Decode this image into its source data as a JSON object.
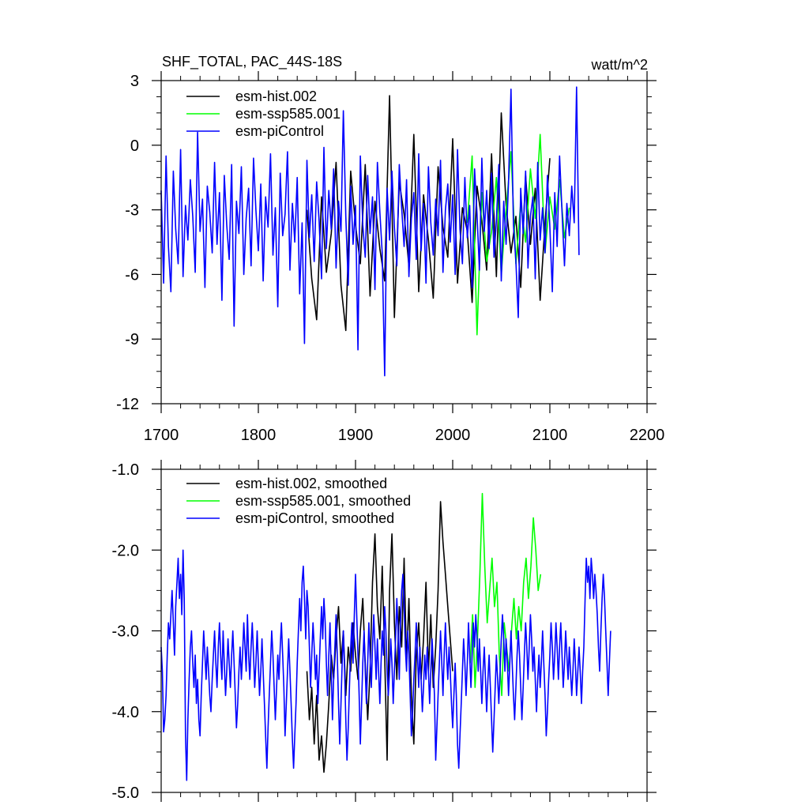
{
  "chart_data": [
    {
      "type": "line",
      "title": "SHF_TOTAL, PAC_44S-18S",
      "units": "watt/m^2",
      "xlim": [
        1700,
        2200
      ],
      "ylim": [
        -12,
        3
      ],
      "xticks": [
        1700,
        1800,
        1900,
        2000,
        2100,
        2200
      ],
      "xtick_labels": [
        "1700",
        "1800",
        "1900",
        "2000",
        "2100",
        "2200"
      ],
      "yticks": [
        -12,
        -9,
        -6,
        -3,
        0,
        3
      ],
      "ytick_labels": [
        "-12",
        "-9",
        "-6",
        "-3",
        "0",
        "3"
      ],
      "legend_position": "top-left",
      "series": [
        {
          "name": "esm-hist.002",
          "color": "#000000",
          "x_start": 1850,
          "x_step": 5,
          "values": [
            -3.0,
            -6.2,
            -8.1,
            -2.4,
            -5.9,
            -4.1,
            -0.8,
            -6.5,
            -8.6,
            -1.2,
            -3.7,
            -5.5,
            -0.9,
            -7.0,
            -2.6,
            -4.8,
            -6.3,
            2.3,
            -8.0,
            -1.7,
            -3.2,
            -5.6,
            0.5,
            -6.8,
            -2.3,
            -4.4,
            -7.1,
            -1.0,
            -3.8,
            -5.2,
            0.3,
            -6.4,
            -2.9,
            -4.0,
            -7.3,
            -1.9,
            -3.5,
            -5.8,
            -0.4,
            -6.1,
            1.5,
            -2.8,
            -5.0,
            -3.3,
            -6.6,
            -1.4,
            -4.6,
            -2.0,
            -7.2,
            -3.6,
            -0.6
          ]
        },
        {
          "name": "esm-ssp585.001",
          "color": "#00ff00",
          "x_start": 2015,
          "x_step": 5,
          "values": [
            -3.6,
            -0.5,
            -8.8,
            -2.2,
            -5.4,
            -4.0,
            -1.5,
            -6.0,
            -3.0,
            -0.3,
            -5.5,
            -2.7,
            -4.5,
            -1.1,
            -3.4,
            0.5,
            -5.0,
            -2.4,
            -3.9,
            -1.6,
            -4.3,
            -2.9
          ]
        },
        {
          "name": "esm-piControl",
          "color": "#0000ff",
          "x_start": 1700,
          "x_step": 2.5,
          "values": [
            -2.1,
            -6.4,
            -0.5,
            -4.7,
            -6.8,
            -1.2,
            -3.9,
            -5.5,
            -0.2,
            -6.1,
            -2.8,
            -4.4,
            -1.6,
            -3.3,
            -5.9,
            0.6,
            -4.0,
            -2.5,
            -6.6,
            -1.9,
            -3.1,
            -5.0,
            -0.8,
            -4.6,
            -2.2,
            -7.2,
            -1.4,
            -3.7,
            -5.3,
            -0.9,
            -8.4,
            -2.6,
            -4.1,
            -1.0,
            -6.0,
            -3.4,
            -2.0,
            -5.6,
            -0.6,
            -3.0,
            -4.9,
            -1.8,
            -6.3,
            -2.4,
            -3.8,
            -0.4,
            -5.1,
            -2.9,
            -7.5,
            -1.3,
            -4.2,
            -3.2,
            -0.3,
            -5.8,
            -2.7,
            -4.5,
            -1.5,
            -6.9,
            -3.6,
            -9.2,
            -0.7,
            -4.3,
            -2.3,
            -5.4,
            -1.7,
            -3.5,
            -6.2,
            -0.1,
            -4.8,
            -2.1,
            -3.9,
            -1.1,
            -5.7,
            -2.6,
            -4.0,
            1.6,
            -3.3,
            -6.5,
            -1.9,
            -4.6,
            -2.8,
            -9.5,
            -0.5,
            -3.7,
            -5.2,
            -1.4,
            -4.1,
            -2.4,
            -6.7,
            -0.8,
            -3.1,
            -5.0,
            -10.7,
            -2.0,
            -4.4,
            -1.2,
            -3.8,
            -5.6,
            -0.9,
            -2.9,
            -4.7,
            -1.6,
            -6.1,
            -3.4,
            -2.2,
            -5.3,
            -0.4,
            -4.9,
            -2.7,
            -6.4,
            -1.0,
            -3.6,
            -5.1,
            -2.5,
            -4.2,
            -0.7,
            -5.9,
            -3.0,
            -1.8,
            -4.5,
            -2.3,
            -6.0,
            -0.2,
            -3.9,
            -5.5,
            -1.5,
            -4.3,
            -2.8,
            -6.6,
            -1.1,
            -3.2,
            -5.8,
            -0.6,
            -4.0,
            -2.1,
            -4.8,
            -1.3,
            -5.2,
            -3.5,
            -0.9,
            -6.3,
            -2.6,
            -4.6,
            -1.7,
            2.6,
            -3.7,
            -5.4,
            -8.0,
            -2.0,
            -4.1,
            -1.2,
            -5.7,
            -3.3,
            -2.4,
            -6.2,
            -0.8,
            -4.4,
            -2.9,
            -5.0,
            -1.4,
            -3.8,
            -6.8,
            -2.2,
            -4.7,
            -0.5,
            -3.1,
            -5.6,
            -2.7,
            -4.2,
            -1.9,
            -3.6,
            2.7,
            -5.1
          ]
        }
      ]
    },
    {
      "type": "line",
      "xlim": [
        1700,
        2200
      ],
      "ylim": [
        -5.0,
        -1.0
      ],
      "xticks": [
        1700,
        1800,
        1900,
        2000,
        2100,
        2200
      ],
      "yticks": [
        -5.0,
        -4.0,
        -3.0,
        -2.0,
        -1.0
      ],
      "ytick_labels": [
        "-5.0",
        "-4.0",
        "-3.0",
        "-2.0",
        "-1.0"
      ],
      "legend_position": "top-left",
      "series": [
        {
          "name": "esm-hist.002, smoothed",
          "color": "#000000",
          "x_start": 1850,
          "x_step": 2.5,
          "values": [
            -3.5,
            -4.1,
            -3.7,
            -4.4,
            -3.8,
            -4.6,
            -4.3,
            -4.75,
            -4.4,
            -3.9,
            -3.3,
            -3.6,
            -3.1,
            -2.7,
            -3.4,
            -3.0,
            -3.8,
            -3.2,
            -3.5,
            -2.9,
            -3.3,
            -3.6,
            -3.0,
            -2.6,
            -3.4,
            -4.1,
            -3.5,
            -2.4,
            -1.8,
            -2.7,
            -3.1,
            -2.2,
            -3.3,
            -4.6,
            -2.5,
            -1.8,
            -2.9,
            -3.6,
            -2.7,
            -3.2,
            -2.1,
            -3.4,
            -2.6,
            -3.8,
            -4.4,
            -3.3,
            -2.9,
            -3.6,
            -3.1,
            -2.4,
            -3.5,
            -2.8,
            -3.7,
            -3.2,
            -2.5,
            -1.4,
            -1.9,
            -2.3,
            -2.7,
            -3.1,
            -3.5
          ]
        },
        {
          "name": "esm-ssp585.001, smoothed",
          "color": "#00ff00",
          "x_start": 2018,
          "x_step": 2.5,
          "values": [
            -3.4,
            -2.8,
            -3.7,
            -3.1,
            -2.3,
            -1.3,
            -2.2,
            -2.9,
            -2.5,
            -2.1,
            -2.7,
            -2.4,
            -3.3,
            -3.8,
            -2.9,
            -3.2,
            -3.5,
            -3.0,
            -2.6,
            -3.1,
            -2.7,
            -3.0,
            -2.4,
            -2.1,
            -2.6,
            -2.2,
            -1.6,
            -2.0,
            -2.5,
            -2.3
          ]
        },
        {
          "name": "esm-piControl, smoothed",
          "color": "#0000ff",
          "x_start": 1700,
          "x_step": 1.25,
          "values": [
            -3.2,
            -3.5,
            -4.25,
            -4.1,
            -3.8,
            -3.3,
            -2.9,
            -3.1,
            -2.8,
            -2.5,
            -2.9,
            -3.3,
            -2.7,
            -2.4,
            -2.1,
            -2.6,
            -2.3,
            -2.8,
            -2.0,
            -2.6,
            -4.3,
            -4.85,
            -4.1,
            -3.6,
            -3.2,
            -3.0,
            -3.4,
            -3.7,
            -3.3,
            -3.9,
            -3.6,
            -4.1,
            -4.3,
            -3.8,
            -3.4,
            -3.0,
            -3.3,
            -3.6,
            -3.2,
            -3.5,
            -3.8,
            -4.0,
            -3.6,
            -3.3,
            -3.0,
            -3.4,
            -3.7,
            -3.2,
            -2.9,
            -3.3,
            -3.6,
            -3.0,
            -3.4,
            -3.8,
            -3.5,
            -3.1,
            -3.4,
            -3.7,
            -3.3,
            -3.0,
            -3.4,
            -3.8,
            -4.2,
            -3.9,
            -3.5,
            -3.2,
            -3.6,
            -3.3,
            -2.9,
            -3.2,
            -3.5,
            -2.8,
            -3.3,
            -3.6,
            -3.2,
            -2.9,
            -3.3,
            -3.7,
            -3.4,
            -3.0,
            -3.4,
            -3.8,
            -3.5,
            -3.1,
            -3.5,
            -3.9,
            -4.3,
            -4.7,
            -4.2,
            -3.8,
            -3.4,
            -3.0,
            -3.3,
            -3.7,
            -4.1,
            -3.7,
            -3.3,
            -3.6,
            -3.2,
            -2.9,
            -3.3,
            -3.7,
            -4.3,
            -3.9,
            -3.5,
            -3.1,
            -3.5,
            -3.9,
            -4.35,
            -4.7,
            -4.3,
            -3.9,
            -3.4,
            -3.0,
            -2.6,
            -3.0,
            -2.4,
            -2.2,
            -2.6,
            -3.1,
            -2.5,
            -2.7,
            -3.2,
            -3.7,
            -3.3,
            -2.9,
            -3.2,
            -3.6,
            -3.3,
            -3.9,
            -3.5,
            -3.1,
            -2.7,
            -3.1,
            -2.6,
            -2.9,
            -3.4,
            -3.8,
            -3.3,
            -2.9,
            -3.5,
            -4.1,
            -3.6,
            -3.2,
            -2.8,
            -3.3,
            -3.9,
            -4.4,
            -3.9,
            -3.4,
            -3.0,
            -3.5,
            -4.1,
            -4.6,
            -4.2,
            -3.7,
            -3.2,
            -2.9,
            -3.4,
            -2.8,
            -2.3,
            -2.8,
            -3.3,
            -3.8,
            -4.4,
            -3.9,
            -3.4,
            -3.0,
            -3.5,
            -3.9,
            -3.4,
            -2.9,
            -3.3,
            -3.7,
            -3.2,
            -2.8,
            -3.2,
            -3.6,
            -3.1,
            -3.5,
            -3.9,
            -3.4,
            -3.0,
            -3.3,
            -2.7,
            -3.0,
            -3.5,
            -3.8,
            -3.5,
            -3.1,
            -3.4,
            -3.9,
            -3.5,
            -3.1,
            -2.6,
            -3.0,
            -3.6,
            -2.9,
            -2.5,
            -2.3,
            -2.7,
            -3.2,
            -3.5,
            -3.0,
            -3.3,
            -3.8,
            -4.3,
            -4.0,
            -3.6,
            -3.3,
            -2.9,
            -3.3,
            -3.7,
            -3.2,
            -3.6,
            -4.0,
            -3.7,
            -3.3,
            -3.6,
            -3.2,
            -3.5,
            -3.9,
            -3.5,
            -3.1,
            -3.4,
            -3.8,
            -4.6,
            -4.2,
            -3.8,
            -3.4,
            -3.0,
            -3.4,
            -3.8,
            -3.3,
            -2.9,
            -3.3,
            -3.6,
            -3.2,
            -3.5,
            -3.9,
            -4.2,
            -3.8,
            -3.4,
            -3.8,
            -4.4,
            -4.7,
            -4.3,
            -3.9,
            -3.5,
            -3.1,
            -3.4,
            -3.8,
            -3.4,
            -2.9,
            -3.3,
            -3.7,
            -3.3,
            -2.9,
            -3.2,
            -2.8,
            -3.1,
            -3.5,
            -3.1,
            -3.5,
            -3.9,
            -3.5,
            -3.2,
            -3.6,
            -4.0,
            -3.6,
            -3.3,
            -3.7,
            -4.1,
            -4.5,
            -4.1,
            -3.7,
            -3.3,
            -3.6,
            -3.9,
            -3.5,
            -3.1,
            -2.8,
            -3.1,
            -3.5,
            -3.1,
            -3.4,
            -3.8,
            -3.4,
            -3.0,
            -3.4,
            -3.8,
            -4.1,
            -3.7,
            -3.3,
            -3.0,
            -3.3,
            -3.7,
            -4.1,
            -3.7,
            -3.3,
            -2.9,
            -3.2,
            -3.6,
            -3.2,
            -2.8,
            -3.1,
            -3.5,
            -3.2,
            -3.6,
            -4.0,
            -3.6,
            -3.3,
            -3.7,
            -3.4,
            -3.0,
            -3.4,
            -3.8,
            -4.3,
            -4.0,
            -3.6,
            -3.3,
            -2.9,
            -3.2,
            -3.6,
            -3.3,
            -2.9,
            -3.2,
            -3.6,
            -3.2,
            -2.9,
            -3.3,
            -3.7,
            -3.4,
            -3.0,
            -3.3,
            -3.6,
            -3.2,
            -3.5,
            -3.8,
            -3.5,
            -3.1,
            -3.4,
            -3.8,
            -3.5,
            -3.2,
            -3.5,
            -3.9,
            -3.5,
            -3.2,
            -2.6,
            -2.1,
            -2.4,
            -2.2,
            -2.6,
            -2.1,
            -2.3,
            -2.6,
            -2.3,
            -2.5,
            -2.8,
            -3.2,
            -3.5,
            -3.0,
            -2.6,
            -2.3,
            -2.6,
            -3.0,
            -3.4,
            -3.8,
            -3.4,
            -3.0
          ]
        }
      ]
    }
  ]
}
